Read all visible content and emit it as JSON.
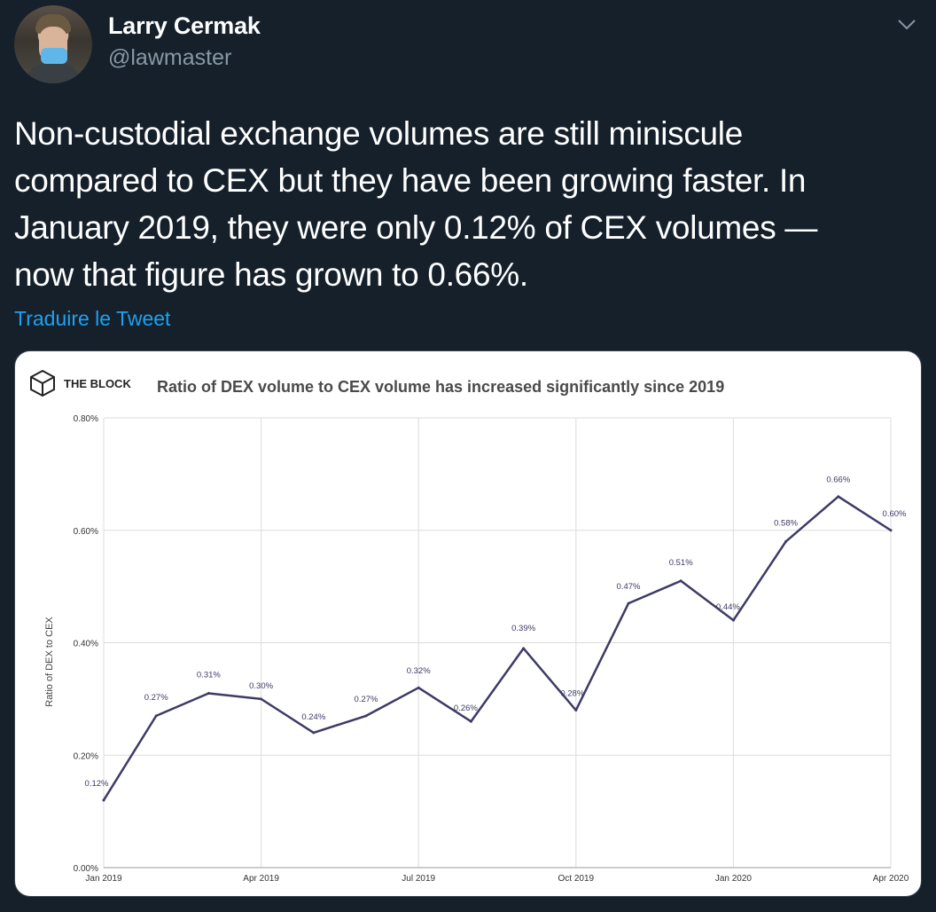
{
  "author": {
    "name": "Larry Cermak",
    "handle": "@lawmaster"
  },
  "tweet": {
    "lines": [
      "Non-custodial exchange volumes are still miniscule",
      "compared to CEX but they have been growing faster. In",
      "January 2019, they were only 0.12% of CEX volumes —",
      "now that figure has grown to 0.66%."
    ],
    "translate_label": "Traduire le Tweet"
  },
  "icons": {
    "menu": "chevron-down-icon",
    "brand": "cube-icon"
  },
  "colors": {
    "background": "#15202b",
    "link": "#1da1f2",
    "secondary_text": "#8899a6",
    "line": "#3d3a66"
  },
  "chart_data": {
    "type": "line",
    "brand": "THE BLOCK",
    "title": "Ratio of DEX volume to CEX volume has increased significantly since 2019",
    "ylabel": "Ratio of DEX to CEX",
    "xlabel": "",
    "ylim": [
      0,
      0.8
    ],
    "yticks": [
      "0.00%",
      "0.20%",
      "0.40%",
      "0.60%",
      "0.80%"
    ],
    "xticks": [
      "Jan 2019",
      "Apr 2019",
      "Jul 2019",
      "Oct 2019",
      "Jan 2020",
      "Apr 2020"
    ],
    "grid": true,
    "x": [
      "2019-01",
      "2019-02",
      "2019-03",
      "2019-04",
      "2019-05",
      "2019-06",
      "2019-07",
      "2019-08",
      "2019-09",
      "2019-10",
      "2019-11",
      "2019-12",
      "2020-01",
      "2020-02",
      "2020-03",
      "2020-04"
    ],
    "values": [
      0.12,
      0.27,
      0.31,
      0.3,
      0.24,
      0.27,
      0.32,
      0.26,
      0.39,
      0.28,
      0.47,
      0.51,
      0.44,
      0.58,
      0.66,
      0.6
    ],
    "labels": [
      "0.12%",
      "0.27%",
      "0.31%",
      "0.30%",
      "0.24%",
      "0.27%",
      "0.32%",
      "0.26%",
      "0.39%",
      "0.28%",
      "0.47%",
      "0.51%",
      "0.44%",
      "0.58%",
      "0.66%",
      "0.60%"
    ]
  }
}
